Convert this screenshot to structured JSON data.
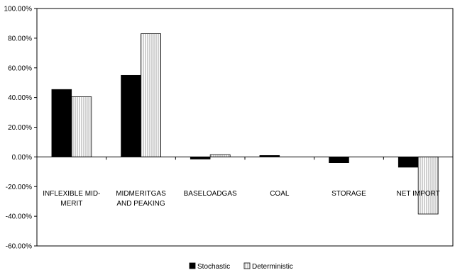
{
  "chart_data": {
    "type": "bar",
    "categories": [
      [
        "INFLEXIBLE MID-",
        "MERIT"
      ],
      [
        "MIDMERITGAS",
        "AND PEAKING"
      ],
      [
        "BASELOADGAS"
      ],
      [
        "COAL"
      ],
      [
        "STORAGE"
      ],
      [
        "NET IMPORT"
      ]
    ],
    "series": [
      {
        "name": "Stochastic",
        "values": [
          45.5,
          55.0,
          -1.5,
          1.0,
          -4.0,
          -7.0
        ],
        "style": "solid",
        "color": "#000000"
      },
      {
        "name": "Deterministic",
        "values": [
          40.5,
          83.0,
          1.5,
          0.0,
          0.0,
          -38.5
        ],
        "style": "vertical-hatch",
        "color": "#ffffff"
      }
    ],
    "title": "",
    "xlabel": "",
    "ylabel": "",
    "ylim": [
      -60,
      100
    ],
    "yticks": [
      100,
      80,
      60,
      40,
      20,
      0,
      -20,
      -40,
      -60
    ],
    "ytick_format": "percent-2dp",
    "grid": false,
    "legend": "bottom-center"
  }
}
